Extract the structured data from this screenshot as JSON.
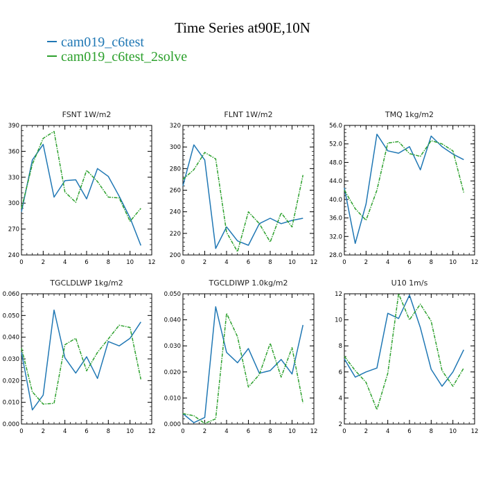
{
  "page": {
    "title": "Time Series at90E,10N",
    "legend": [
      {
        "label": "cam019_c6test",
        "color": "#1f77b4"
      },
      {
        "label": "cam019_c6test_2solve",
        "color": "#2ca02c"
      }
    ]
  },
  "chart_data": [
    {
      "type": "line",
      "title": "FSNT   1W/m2",
      "x": [
        0,
        1,
        2,
        3,
        4,
        5,
        6,
        7,
        8,
        9,
        10,
        11
      ],
      "xlim": [
        0,
        12
      ],
      "xticks": [
        "0",
        "2",
        "4",
        "6",
        "8",
        "10",
        "12"
      ],
      "ylim": [
        240,
        390
      ],
      "yticks": [
        "240",
        "270",
        "300",
        "330",
        "360",
        "390"
      ],
      "series": [
        {
          "name": "cam019_c6test",
          "color": "#1f77b4",
          "style": "solid",
          "values": [
            290,
            350,
            368,
            307,
            326,
            327,
            305,
            340,
            331,
            308,
            283,
            251
          ]
        },
        {
          "name": "cam019_c6test_2solve",
          "color": "#2ca02c",
          "style": "dashed",
          "values": [
            294,
            345,
            375,
            383,
            313,
            301,
            338,
            325,
            307,
            306,
            279,
            294
          ]
        }
      ]
    },
    {
      "type": "line",
      "title": "FLNT   1W/m2",
      "x": [
        0,
        1,
        2,
        3,
        4,
        5,
        6,
        7,
        8,
        9,
        10,
        11
      ],
      "xlim": [
        0,
        12
      ],
      "xticks": [
        "0",
        "2",
        "4",
        "6",
        "8",
        "10",
        "12"
      ],
      "ylim": [
        200,
        320
      ],
      "yticks": [
        "200",
        "220",
        "240",
        "260",
        "280",
        "300",
        "320"
      ],
      "series": [
        {
          "name": "cam019_c6test",
          "color": "#1f77b4",
          "style": "solid",
          "values": [
            264,
            302,
            288,
            206,
            226,
            213,
            209,
            229,
            234,
            229,
            232,
            234
          ]
        },
        {
          "name": "cam019_c6test_2solve",
          "color": "#2ca02c",
          "style": "dashed",
          "values": [
            270,
            279,
            295,
            289,
            221,
            203,
            240,
            229,
            212,
            239,
            226,
            274
          ]
        }
      ]
    },
    {
      "type": "line",
      "title": "TMQ   1kg/m2",
      "x": [
        0,
        1,
        2,
        3,
        4,
        5,
        6,
        7,
        8,
        9,
        10,
        11
      ],
      "xlim": [
        0,
        12
      ],
      "xticks": [
        "0",
        "2",
        "4",
        "6",
        "8",
        "10",
        "12"
      ],
      "ylim": [
        28,
        56
      ],
      "yticks": [
        "28.0",
        "32.0",
        "36.0",
        "40.0",
        "44.0",
        "48.0",
        "52.0",
        "56.0"
      ],
      "series": [
        {
          "name": "cam019_c6test",
          "color": "#1f77b4",
          "style": "solid",
          "values": [
            42.5,
            30.5,
            39.0,
            54.1,
            50.5,
            50.0,
            51.4,
            46.4,
            53.7,
            51.4,
            49.8,
            48.6
          ]
        },
        {
          "name": "cam019_c6test_2solve",
          "color": "#2ca02c",
          "style": "dashed",
          "values": [
            42.0,
            38.0,
            35.5,
            42.0,
            52.2,
            52.5,
            49.9,
            49.3,
            52.7,
            52.0,
            50.5,
            41.5
          ]
        }
      ]
    },
    {
      "type": "line",
      "title": "TGCLDLWP   1kg/m2",
      "x": [
        0,
        1,
        2,
        3,
        4,
        5,
        6,
        7,
        8,
        9,
        10,
        11
      ],
      "xlim": [
        0,
        12
      ],
      "xticks": [
        "0",
        "2",
        "4",
        "6",
        "8",
        "10",
        "12"
      ],
      "ylim": [
        0,
        0.06
      ],
      "yticks": [
        "0.000",
        "0.010",
        "0.020",
        "0.030",
        "0.040",
        "0.050",
        "0.060"
      ],
      "series": [
        {
          "name": "cam019_c6test",
          "color": "#1f77b4",
          "style": "solid",
          "values": [
            0.033,
            0.0065,
            0.0133,
            0.0525,
            0.0305,
            0.0235,
            0.031,
            0.021,
            0.038,
            0.036,
            0.0395,
            0.047
          ]
        },
        {
          "name": "cam019_c6test_2solve",
          "color": "#2ca02c",
          "style": "dashed",
          "values": [
            0.035,
            0.0148,
            0.0092,
            0.0095,
            0.0365,
            0.0395,
            0.0245,
            0.033,
            0.0392,
            0.0455,
            0.0445,
            0.0206
          ]
        }
      ]
    },
    {
      "type": "line",
      "title": "TGCLDIWP   1.0kg/m2",
      "x": [
        0,
        1,
        2,
        3,
        4,
        5,
        6,
        7,
        8,
        9,
        10,
        11
      ],
      "xlim": [
        0,
        12
      ],
      "xticks": [
        "0",
        "2",
        "4",
        "6",
        "8",
        "10",
        "12"
      ],
      "ylim": [
        0,
        0.05
      ],
      "yticks": [
        "0.000",
        "0.010",
        "0.020",
        "0.030",
        "0.040",
        "0.050"
      ],
      "series": [
        {
          "name": "cam019_c6test",
          "color": "#1f77b4",
          "style": "solid",
          "values": [
            0.004,
            0.0005,
            0.0025,
            0.045,
            0.0275,
            0.0235,
            0.029,
            0.0195,
            0.0205,
            0.0248,
            0.0192,
            0.038
          ]
        },
        {
          "name": "cam019_c6test_2solve",
          "color": "#2ca02c",
          "style": "dashed",
          "values": [
            0.004,
            0.0032,
            0.0002,
            0.002,
            0.0425,
            0.0335,
            0.0142,
            0.019,
            0.031,
            0.018,
            0.0293,
            0.008
          ]
        }
      ]
    },
    {
      "type": "line",
      "title": "U10   1m/s",
      "x": [
        0,
        1,
        2,
        3,
        4,
        5,
        6,
        7,
        8,
        9,
        10,
        11
      ],
      "xlim": [
        0,
        12
      ],
      "xticks": [
        "0",
        "2",
        "4",
        "6",
        "8",
        "10",
        "12"
      ],
      "ylim": [
        2,
        12
      ],
      "yticks": [
        "2",
        "4",
        "6",
        "8",
        "10",
        "12"
      ],
      "series": [
        {
          "name": "cam019_c6test",
          "color": "#1f77b4",
          "style": "solid",
          "values": [
            7.0,
            5.6,
            6.0,
            6.3,
            10.5,
            10.1,
            11.9,
            9.4,
            6.2,
            4.9,
            6.0,
            7.7
          ]
        },
        {
          "name": "cam019_c6test_2solve",
          "color": "#2ca02c",
          "style": "dashed",
          "values": [
            7.2,
            6.1,
            5.2,
            3.1,
            5.9,
            12.0,
            10.0,
            11.2,
            9.9,
            6.1,
            4.9,
            6.3
          ]
        }
      ]
    }
  ]
}
